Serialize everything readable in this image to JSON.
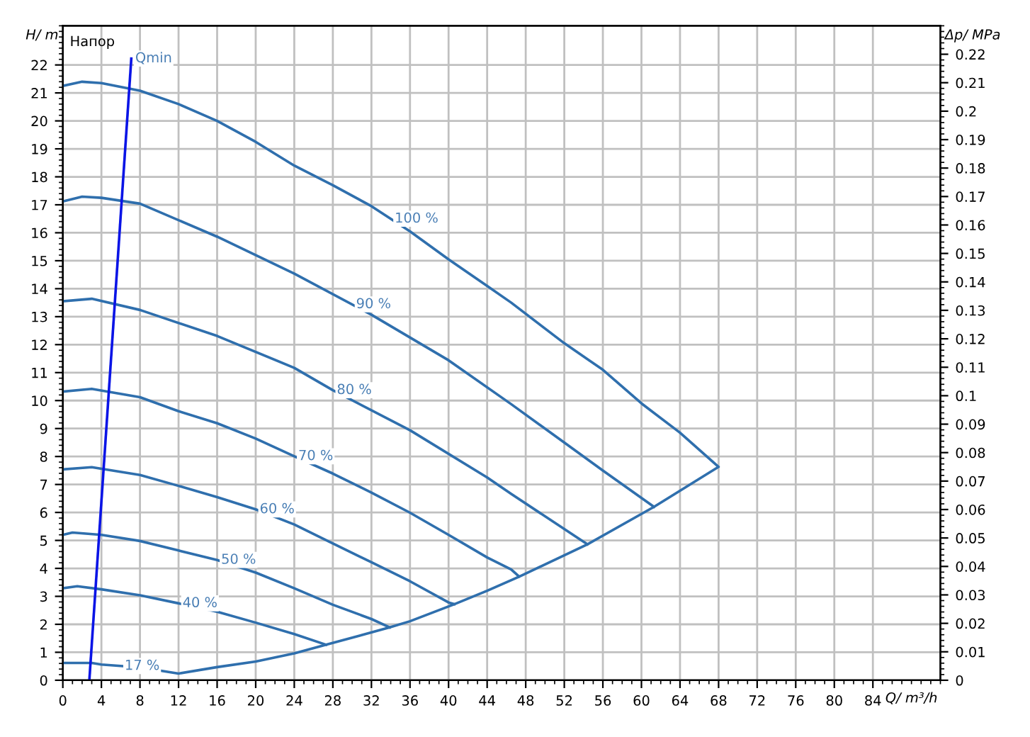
{
  "chart_data": {
    "type": "line",
    "xlabel": "Q/ m³/h",
    "ylabel": "H/ m",
    "y2label": "Δp/ MPa",
    "series": [
      {
        "color": "#2f6fad",
        "x": [
          0,
          3,
          4,
          8,
          12,
          16,
          20,
          24,
          27.3,
          33.9,
          36,
          40.6,
          44,
          47.3,
          54.4,
          61.3,
          68,
          64,
          60,
          56,
          52,
          46.5,
          44,
          40,
          36,
          32,
          28,
          24,
          20,
          16,
          12,
          8,
          4,
          2,
          0
        ],
        "values": [
          0.62,
          0.62,
          0.56,
          0.46,
          0.24,
          0.47,
          0.67,
          0.96,
          1.27,
          1.89,
          2.11,
          2.72,
          3.2,
          3.7,
          4.86,
          6.2,
          7.63,
          8.85,
          9.9,
          11.1,
          12.05,
          13.5,
          14.1,
          15.05,
          16.05,
          16.95,
          17.7,
          18.4,
          19.25,
          20.0,
          20.6,
          21.08,
          21.35,
          21.4,
          21.25
        ]
      },
      {
        "color": "#2f6fad",
        "x": [
          0,
          2,
          4,
          8,
          16,
          24,
          32,
          40,
          46.5,
          52,
          56,
          61.3
        ],
        "values": [
          17.12,
          17.29,
          17.25,
          17.04,
          15.86,
          14.54,
          13.07,
          11.44,
          9.87,
          8.5,
          7.5,
          6.2
        ]
      },
      {
        "color": "#2f6fad",
        "x": [
          0,
          3,
          8,
          16,
          24,
          28,
          36,
          44,
          46.5,
          54.4
        ],
        "values": [
          13.55,
          13.64,
          13.24,
          12.31,
          11.17,
          10.37,
          8.94,
          7.25,
          6.66,
          4.86
        ]
      },
      {
        "color": "#2f6fad",
        "x": [
          0,
          3,
          8,
          12,
          16,
          20,
          24,
          28,
          32,
          36,
          40,
          44,
          46.5,
          47.3
        ],
        "values": [
          10.32,
          10.42,
          10.12,
          9.62,
          9.19,
          8.64,
          8.01,
          7.39,
          6.71,
          5.99,
          5.2,
          4.39,
          3.96,
          3.71
        ]
      },
      {
        "color": "#2f6fad",
        "x": [
          0,
          3,
          8,
          12,
          16,
          20,
          24,
          28,
          32,
          36,
          40,
          40.6
        ],
        "values": [
          7.54,
          7.62,
          7.34,
          6.95,
          6.55,
          6.11,
          5.57,
          4.89,
          4.22,
          3.54,
          2.78,
          2.72
        ]
      },
      {
        "color": "#2f6fad",
        "x": [
          0,
          1,
          4,
          8,
          12,
          16,
          20,
          24,
          28,
          32,
          33.9
        ],
        "values": [
          5.2,
          5.28,
          5.2,
          4.98,
          4.64,
          4.3,
          3.85,
          3.29,
          2.7,
          2.19,
          1.89
        ]
      },
      {
        "color": "#2f6fad",
        "x": [
          0,
          1.5,
          4,
          8,
          12,
          16,
          20,
          24,
          27.3
        ],
        "values": [
          3.29,
          3.36,
          3.25,
          3.04,
          2.75,
          2.45,
          2.06,
          1.65,
          1.27
        ]
      },
      {
        "color": "#0a14e6",
        "x": [
          2.75,
          7.1
        ],
        "values": [
          0,
          22.23
        ]
      }
    ],
    "annotations": [
      "Напор",
      {
        "text": "Qmin",
        "x": 7.1,
        "y": 22.23
      },
      {
        "text": "100 %",
        "x": 34,
        "y": 16.5
      },
      {
        "text": "90 %",
        "x": 30,
        "y": 13.44
      },
      {
        "text": "80 %",
        "x": 28,
        "y": 10.37
      },
      {
        "text": "70 %",
        "x": 24,
        "y": 8.01
      },
      {
        "text": "60 %",
        "x": 20,
        "y": 6.11
      },
      {
        "text": "50 %",
        "x": 16,
        "y": 4.3
      },
      {
        "text": "40 %",
        "x": 12,
        "y": 2.75
      },
      {
        "text": "17 %",
        "x": 6,
        "y": 0.51
      }
    ],
    "xlim": [
      0,
      91
    ],
    "ylim": [
      0,
      23.4
    ],
    "y2lim": [
      0,
      0.23
    ],
    "xticks": [
      0,
      4,
      8,
      12,
      16,
      20,
      24,
      28,
      32,
      36,
      40,
      44,
      48,
      52,
      56,
      60,
      64,
      68,
      72,
      76,
      80,
      84
    ],
    "yticks": [
      0,
      1,
      2,
      3,
      4,
      5,
      6,
      7,
      8,
      9,
      10,
      11,
      12,
      13,
      14,
      15,
      16,
      17,
      18,
      19,
      20,
      21,
      22
    ],
    "y2ticks": [
      0,
      0.01,
      0.02,
      0.03,
      0.04,
      0.05,
      0.06,
      0.07,
      0.08,
      0.09,
      0.1,
      0.11,
      0.12,
      0.13,
      0.14,
      0.15,
      0.16,
      0.17,
      0.18,
      0.19,
      0.2,
      0.21,
      0.22
    ],
    "grid": true,
    "legend": false,
    "marker": "none",
    "line_style": "solid"
  }
}
